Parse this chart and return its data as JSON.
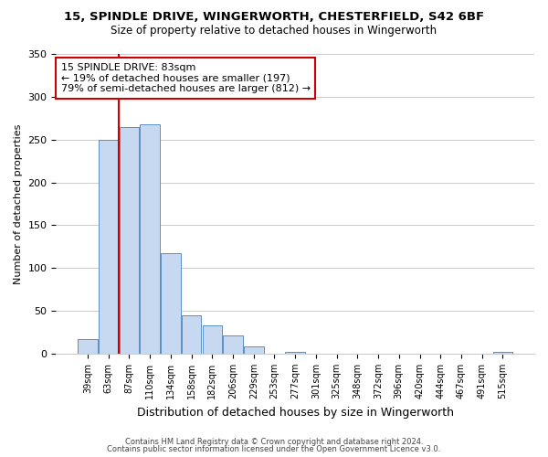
{
  "title1": "15, SPINDLE DRIVE, WINGERWORTH, CHESTERFIELD, S42 6BF",
  "title2": "Size of property relative to detached houses in Wingerworth",
  "xlabel": "Distribution of detached houses by size in Wingerworth",
  "ylabel": "Number of detached properties",
  "bar_labels": [
    "39sqm",
    "63sqm",
    "87sqm",
    "110sqm",
    "134sqm",
    "158sqm",
    "182sqm",
    "206sqm",
    "229sqm",
    "253sqm",
    "277sqm",
    "301sqm",
    "325sqm",
    "348sqm",
    "372sqm",
    "396sqm",
    "420sqm",
    "444sqm",
    "467sqm",
    "491sqm",
    "515sqm"
  ],
  "bar_heights": [
    17,
    250,
    265,
    268,
    117,
    45,
    33,
    21,
    9,
    0,
    2,
    0,
    0,
    0,
    0,
    0,
    0,
    0,
    0,
    0,
    2
  ],
  "bar_color": "#c6d9f0",
  "bar_edge_color": "#5a8fc3",
  "vline_index": 2,
  "vline_color": "#cc0000",
  "ylim": [
    0,
    350
  ],
  "yticks": [
    0,
    50,
    100,
    150,
    200,
    250,
    300,
    350
  ],
  "annotation_title": "15 SPINDLE DRIVE: 83sqm",
  "annotation_line1": "← 19% of detached houses are smaller (197)",
  "annotation_line2": "79% of semi-detached houses are larger (812) →",
  "footer1": "Contains HM Land Registry data © Crown copyright and database right 2024.",
  "footer2": "Contains public sector information licensed under the Open Government Licence v3.0.",
  "bg_color": "#ffffff",
  "annotation_box_color": "#ffffff",
  "annotation_box_edge": "#cc0000"
}
